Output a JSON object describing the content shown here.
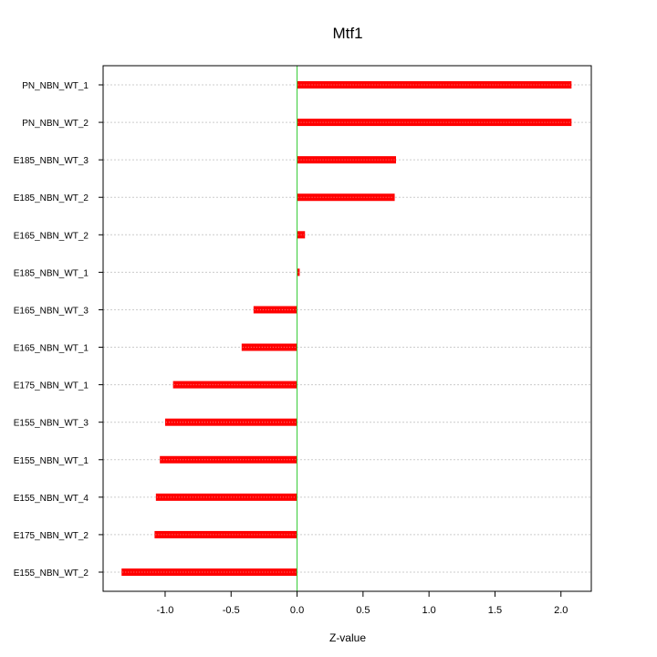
{
  "chart_data": {
    "type": "bar",
    "orientation": "horizontal",
    "title": "Mtf1",
    "xlabel": "Z-value",
    "ylabel": "",
    "categories": [
      "PN_NBN_WT_1",
      "PN_NBN_WT_2",
      "E185_NBN_WT_3",
      "E185_NBN_WT_2",
      "E165_NBN_WT_2",
      "E185_NBN_WT_1",
      "E165_NBN_WT_3",
      "E165_NBN_WT_1",
      "E175_NBN_WT_1",
      "E155_NBN_WT_3",
      "E155_NBN_WT_1",
      "E155_NBN_WT_4",
      "E175_NBN_WT_2",
      "E155_NBN_WT_2"
    ],
    "values": [
      2.08,
      2.08,
      0.75,
      0.74,
      0.06,
      0.02,
      -0.33,
      -0.42,
      -0.94,
      -1.0,
      -1.04,
      -1.07,
      -1.08,
      -1.33
    ],
    "xlim": [
      -1.47,
      2.23
    ],
    "xticks": [
      "-1.0",
      "-0.5",
      "0.0",
      "0.5",
      "1.0",
      "1.5",
      "2.0"
    ],
    "grid": true,
    "colors": {
      "bar": "#ff0000",
      "bar_highlight": "#ff8080",
      "zero_line": "#33cc33",
      "grid": "#cccccc",
      "frame": "#000000"
    }
  }
}
